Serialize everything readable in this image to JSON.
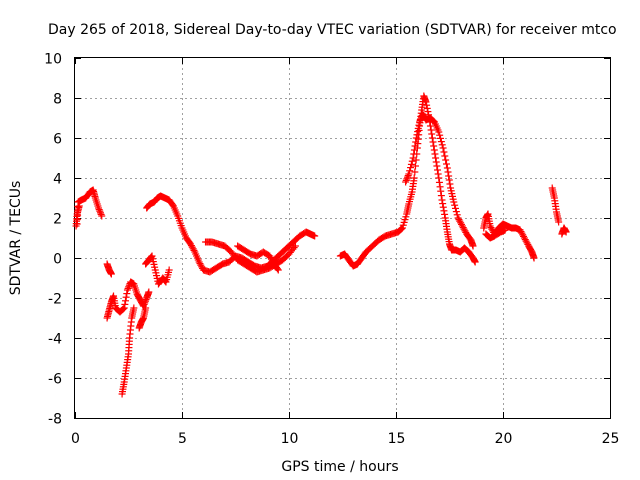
{
  "chart_data": {
    "type": "scatter",
    "title": "Day 265 of 2018, Sidereal Day-to-day VTEC variation (SDTVAR) for receiver mtco",
    "xlabel": "GPS time / hours",
    "ylabel": "SDTVAR / TECUs",
    "xlim": [
      0,
      25
    ],
    "ylim": [
      -8,
      10
    ],
    "xticks": [
      0,
      5,
      10,
      15,
      20,
      25
    ],
    "yticks": [
      -8,
      -6,
      -4,
      -2,
      0,
      2,
      4,
      6,
      8,
      10
    ],
    "grid": true,
    "marker": "plus",
    "color": "#ff0000",
    "series": [
      {
        "name": "SDTVAR",
        "segments": [
          [
            [
              0.1,
              1.7
            ],
            [
              0.15,
              2.8
            ],
            [
              0.3,
              2.9
            ],
            [
              0.5,
              3.0
            ],
            [
              0.7,
              3.3
            ],
            [
              0.85,
              3.4
            ],
            [
              0.95,
              3.0
            ],
            [
              1.1,
              2.5
            ],
            [
              1.25,
              2.1
            ]
          ],
          [
            [
              0.05,
              1.6
            ],
            [
              0.1,
              2.2
            ],
            [
              0.2,
              2.6
            ]
          ],
          [
            [
              1.5,
              -0.3
            ],
            [
              1.6,
              -0.6
            ],
            [
              1.7,
              -0.8
            ]
          ],
          [
            [
              1.5,
              -3.0
            ],
            [
              1.6,
              -2.6
            ],
            [
              1.7,
              -2.2
            ],
            [
              1.8,
              -1.9
            ],
            [
              1.9,
              -2.5
            ],
            [
              2.1,
              -2.7
            ],
            [
              2.3,
              -2.5
            ],
            [
              2.45,
              -1.6
            ],
            [
              2.6,
              -1.2
            ],
            [
              2.75,
              -1.3
            ],
            [
              2.9,
              -1.8
            ],
            [
              3.05,
              -2.1
            ],
            [
              3.2,
              -2.4
            ],
            [
              3.35,
              -2.0
            ],
            [
              3.45,
              -1.7
            ]
          ],
          [
            [
              2.2,
              -6.8
            ],
            [
              2.3,
              -6.2
            ],
            [
              2.4,
              -5.5
            ],
            [
              2.5,
              -4.8
            ],
            [
              2.55,
              -4.0
            ],
            [
              2.65,
              -3.0
            ],
            [
              2.75,
              -2.5
            ]
          ],
          [
            [
              3.0,
              -3.5
            ],
            [
              3.1,
              -3.2
            ],
            [
              3.2,
              -3.0
            ],
            [
              3.3,
              -2.5
            ]
          ],
          [
            [
              3.3,
              -0.3
            ],
            [
              3.45,
              -0.1
            ],
            [
              3.6,
              0.1
            ],
            [
              3.75,
              -0.6
            ],
            [
              3.9,
              -1.3
            ],
            [
              4.1,
              -1.0
            ],
            [
              4.25,
              -1.2
            ],
            [
              4.4,
              -0.6
            ]
          ],
          [
            [
              3.35,
              2.5
            ],
            [
              3.5,
              2.7
            ],
            [
              3.7,
              2.8
            ],
            [
              3.85,
              3.0
            ],
            [
              4.0,
              3.1
            ],
            [
              4.2,
              3.0
            ],
            [
              4.4,
              2.9
            ],
            [
              4.6,
              2.6
            ],
            [
              4.8,
              2.1
            ],
            [
              5.0,
              1.5
            ],
            [
              5.2,
              1.0
            ],
            [
              5.4,
              0.7
            ],
            [
              5.6,
              0.3
            ],
            [
              5.8,
              -0.2
            ],
            [
              6.0,
              -0.6
            ],
            [
              6.3,
              -0.7
            ],
            [
              6.6,
              -0.5
            ],
            [
              6.9,
              -0.3
            ],
            [
              7.2,
              -0.2
            ],
            [
              7.5,
              0.1
            ],
            [
              7.8,
              0.0
            ],
            [
              8.1,
              -0.2
            ],
            [
              8.4,
              -0.4
            ],
            [
              8.7,
              -0.5
            ],
            [
              9.0,
              -0.4
            ],
            [
              9.3,
              -0.1
            ],
            [
              9.6,
              0.2
            ],
            [
              9.9,
              0.5
            ],
            [
              10.2,
              0.8
            ],
            [
              10.5,
              1.1
            ],
            [
              10.8,
              1.3
            ],
            [
              11.0,
              1.2
            ],
            [
              11.2,
              1.1
            ]
          ],
          [
            [
              6.1,
              0.8
            ],
            [
              6.4,
              0.8
            ],
            [
              6.7,
              0.7
            ],
            [
              7.0,
              0.6
            ],
            [
              7.3,
              0.3
            ],
            [
              7.6,
              -0.1
            ],
            [
              7.9,
              -0.3
            ],
            [
              8.2,
              -0.5
            ],
            [
              8.5,
              -0.7
            ],
            [
              8.8,
              -0.6
            ],
            [
              9.1,
              -0.5
            ],
            [
              9.4,
              -0.3
            ],
            [
              9.7,
              -0.1
            ],
            [
              10.0,
              0.2
            ],
            [
              10.3,
              0.6
            ]
          ],
          [
            [
              7.6,
              0.6
            ],
            [
              7.9,
              0.4
            ],
            [
              8.2,
              0.2
            ],
            [
              8.5,
              0.1
            ],
            [
              8.8,
              0.3
            ],
            [
              9.1,
              0.1
            ],
            [
              9.3,
              -0.3
            ],
            [
              9.5,
              -0.6
            ]
          ],
          [
            [
              12.4,
              0.1
            ],
            [
              12.6,
              0.2
            ],
            [
              12.8,
              -0.1
            ],
            [
              13.0,
              -0.4
            ],
            [
              13.2,
              -0.3
            ],
            [
              13.4,
              0.0
            ],
            [
              13.6,
              0.3
            ],
            [
              13.9,
              0.6
            ],
            [
              14.2,
              0.9
            ],
            [
              14.5,
              1.1
            ],
            [
              14.8,
              1.2
            ],
            [
              15.1,
              1.3
            ],
            [
              15.3,
              1.5
            ],
            [
              15.5,
              2.2
            ],
            [
              15.6,
              2.7
            ],
            [
              15.75,
              3.3
            ],
            [
              15.85,
              4.0
            ],
            [
              16.0,
              5.5
            ],
            [
              16.1,
              6.6
            ],
            [
              16.2,
              7.4
            ],
            [
              16.3,
              8.1
            ],
            [
              16.4,
              7.8
            ],
            [
              16.55,
              7.0
            ],
            [
              16.7,
              6.0
            ],
            [
              16.85,
              5.0
            ],
            [
              17.0,
              4.0
            ],
            [
              17.15,
              2.9
            ],
            [
              17.3,
              2.0
            ],
            [
              17.4,
              1.3
            ],
            [
              17.5,
              0.7
            ],
            [
              17.6,
              0.4
            ],
            [
              17.8,
              0.4
            ],
            [
              18.0,
              0.3
            ],
            [
              18.2,
              0.5
            ],
            [
              18.4,
              0.3
            ],
            [
              18.6,
              0.0
            ],
            [
              18.7,
              -0.2
            ]
          ],
          [
            [
              15.45,
              3.8
            ],
            [
              15.6,
              4.2
            ],
            [
              15.8,
              5.0
            ],
            [
              15.95,
              6.0
            ],
            [
              16.1,
              6.8
            ],
            [
              16.25,
              7.2
            ],
            [
              16.4,
              6.9
            ],
            [
              16.6,
              7.0
            ],
            [
              16.8,
              6.8
            ],
            [
              17.0,
              6.3
            ],
            [
              17.2,
              5.5
            ],
            [
              17.4,
              4.5
            ],
            [
              17.55,
              3.5
            ],
            [
              17.7,
              2.8
            ],
            [
              17.9,
              2.0
            ],
            [
              18.1,
              1.6
            ],
            [
              18.3,
              1.2
            ],
            [
              18.5,
              0.9
            ],
            [
              18.6,
              0.6
            ]
          ],
          [
            [
              19.1,
              1.5
            ],
            [
              19.2,
              2.0
            ],
            [
              19.3,
              2.2
            ],
            [
              19.4,
              1.6
            ],
            [
              19.6,
              1.2
            ],
            [
              19.8,
              1.5
            ],
            [
              20.0,
              1.7
            ],
            [
              20.2,
              1.6
            ],
            [
              20.4,
              1.5
            ],
            [
              20.6,
              1.5
            ],
            [
              20.8,
              1.4
            ],
            [
              21.0,
              1.0
            ],
            [
              21.2,
              0.6
            ],
            [
              21.35,
              0.3
            ],
            [
              21.45,
              0.0
            ]
          ],
          [
            [
              19.2,
              1.2
            ],
            [
              19.4,
              1.0
            ],
            [
              19.6,
              1.1
            ],
            [
              19.9,
              1.3
            ],
            [
              20.1,
              1.4
            ]
          ],
          [
            [
              22.3,
              3.5
            ],
            [
              22.4,
              3.0
            ],
            [
              22.5,
              2.3
            ],
            [
              22.6,
              1.8
            ]
          ],
          [
            [
              22.75,
              1.2
            ],
            [
              22.85,
              1.5
            ],
            [
              22.95,
              1.3
            ]
          ]
        ]
      }
    ]
  }
}
